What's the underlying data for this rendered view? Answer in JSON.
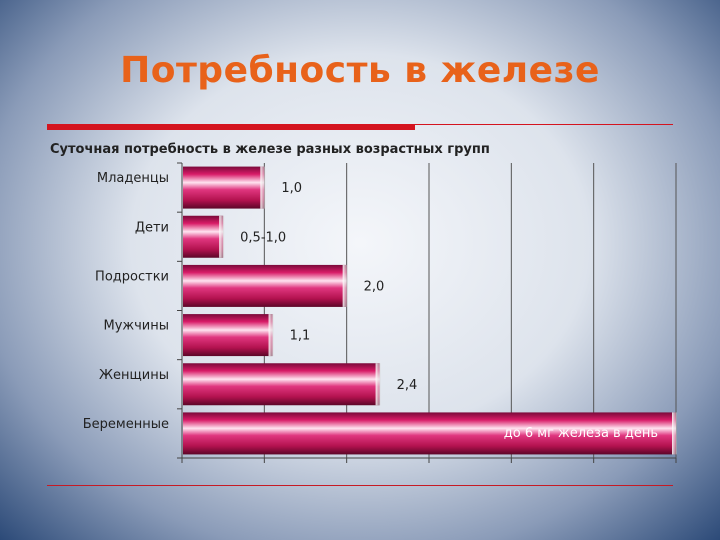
{
  "slide": {
    "title": "Потребность в железе"
  },
  "chart_data": {
    "type": "bar",
    "orientation": "horizontal",
    "title": "Суточная потребность в железе разных возрастных групп",
    "categories": [
      "Младенцы",
      "Дети",
      "Подростки",
      "Мужчины",
      "Женщины",
      "Беременные"
    ],
    "values": [
      1.0,
      0.5,
      2.0,
      1.1,
      2.4,
      6.0
    ],
    "data_labels": [
      "1,0",
      "0,5-1,0",
      "2,0",
      "1,1",
      "2,4",
      "до 6 мг железа в день"
    ],
    "xlim": [
      0,
      6
    ],
    "grid": true,
    "legend": "none",
    "bar_color": "#c2185b"
  }
}
